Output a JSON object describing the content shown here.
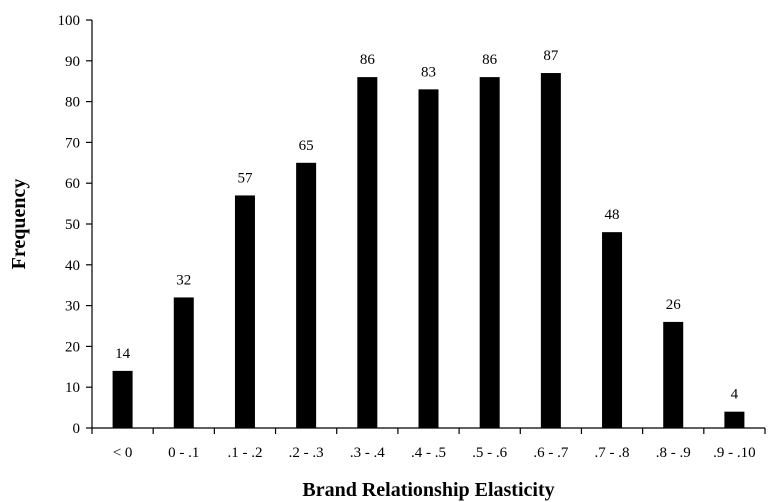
{
  "chart_data": {
    "type": "bar",
    "categories": [
      "< 0",
      "0 - .1",
      ".1 - .2",
      ".2 - .3",
      ".3 - .4",
      ".4 - .5",
      ".5 - .6",
      ".6 - .7",
      ".7 - .8",
      ".8 - .9",
      ".9 - .10"
    ],
    "values": [
      14,
      32,
      57,
      65,
      86,
      83,
      86,
      87,
      48,
      26,
      4
    ],
    "data_labels": [
      "14",
      "32",
      "57",
      "65",
      "86",
      "83",
      "86",
      "87",
      "48",
      "26",
      "4"
    ],
    "title": "",
    "xlabel": "Brand Relationship Elasticity",
    "ylabel": "Frequency",
    "ylim": [
      0,
      100
    ],
    "yticks": [
      0,
      10,
      20,
      30,
      40,
      50,
      60,
      70,
      80,
      90,
      100
    ],
    "grid": false,
    "legend": "none",
    "bar_color": "#000000",
    "axis_color": "#000000"
  }
}
